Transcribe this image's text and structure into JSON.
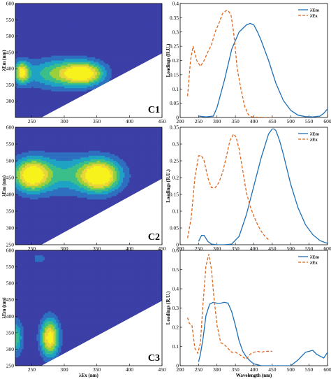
{
  "colors": {
    "em": "#1f6fb4",
    "ex": "#e0661b",
    "contour_levels": [
      "#3b3fa6",
      "#2e6fc0",
      "#1fa3c4",
      "#3bbf8a",
      "#9bcf3c",
      "#e8d53a",
      "#f7f21c"
    ],
    "mask": "#ffffff"
  },
  "chart_data": [
    {
      "type": "heatmap",
      "component": "C1",
      "label": "C1",
      "xlabel": "",
      "ylabel": "λEm (nm)",
      "xlim": [
        225,
        450
      ],
      "ylim": [
        250,
        600
      ],
      "xticks": [
        "250",
        "300",
        "350",
        "400",
        "450"
      ],
      "yticks": [
        "300",
        "350",
        "400",
        "450",
        "500",
        "550",
        "600"
      ],
      "peaks": [
        {
          "ex": 235,
          "em": 388,
          "sx": 8,
          "sy": 24,
          "amp": 0.85
        },
        {
          "ex": 330,
          "em": 385,
          "sx": 22,
          "sy": 25,
          "amp": 1.0
        },
        {
          "ex": 285,
          "em": 385,
          "sx": 32,
          "sy": 32,
          "amp": 0.55
        }
      ],
      "mask_line": {
        "ex": [
          265,
          450
        ],
        "em": [
          250,
          447
        ]
      }
    },
    {
      "type": "heatmap",
      "component": "C2",
      "label": "C2",
      "xlabel": "",
      "ylabel": "λEm (nm)",
      "xlim": [
        225,
        450
      ],
      "ylim": [
        250,
        600
      ],
      "xticks": [
        "250",
        "300",
        "350",
        "400",
        "450"
      ],
      "yticks": [
        "250",
        "300",
        "350",
        "400",
        "450",
        "500",
        "550",
        "600"
      ],
      "peaks": [
        {
          "ex": 250,
          "em": 457,
          "sx": 18,
          "sy": 32,
          "amp": 0.9
        },
        {
          "ex": 355,
          "em": 455,
          "sx": 20,
          "sy": 32,
          "amp": 1.0
        },
        {
          "ex": 300,
          "em": 460,
          "sx": 55,
          "sy": 42,
          "amp": 0.45
        }
      ],
      "mask_line": {
        "ex": [
          265,
          450
        ],
        "em": [
          250,
          447
        ]
      }
    },
    {
      "type": "heatmap",
      "component": "C3",
      "label": "C3",
      "xlabel": "λEx (nm)",
      "ylabel": "λEm (nm)",
      "xlim": [
        225,
        450
      ],
      "ylim": [
        250,
        600
      ],
      "xticks": [
        "250",
        "300",
        "350",
        "400",
        "450"
      ],
      "yticks": [
        "250",
        "300",
        "350",
        "400",
        "450",
        "500",
        "550",
        "600"
      ],
      "peaks": [
        {
          "ex": 278,
          "em": 335,
          "sx": 10,
          "sy": 40,
          "amp": 1.0
        },
        {
          "ex": 222,
          "em": 335,
          "sx": 10,
          "sy": 38,
          "amp": 0.6
        },
        {
          "ex": 262,
          "em": 575,
          "sx": 8,
          "sy": 12,
          "amp": 0.25
        }
      ],
      "mask_line": {
        "ex": [
          265,
          450
        ],
        "em": [
          250,
          447
        ]
      }
    },
    {
      "type": "line",
      "component": "C1",
      "xlabel": "",
      "ylabel": "Loadings (R.U.)",
      "xlim": [
        200,
        600
      ],
      "ylim": [
        0,
        0.4
      ],
      "xticks": [
        "200",
        "250",
        "300",
        "350",
        "400",
        "450",
        "500",
        "550",
        "600"
      ],
      "yticks": [
        "0",
        "0.05",
        "0.1",
        "0.15",
        "0.2",
        "0.25",
        "0.3",
        "0.35",
        "0.4"
      ],
      "legend": "top-right",
      "series": [
        {
          "name": "λEm",
          "style": "solid",
          "x": [
            250,
            270,
            290,
            300,
            320,
            340,
            360,
            380,
            390,
            400,
            410,
            420,
            440,
            460,
            480,
            500,
            520,
            540,
            560,
            580,
            590,
            600
          ],
          "y": [
            0.005,
            0.002,
            0.005,
            0.035,
            0.13,
            0.24,
            0.3,
            0.325,
            0.33,
            0.325,
            0.3,
            0.27,
            0.2,
            0.12,
            0.06,
            0.025,
            0.008,
            0.003,
            0.002,
            0.005,
            0.015,
            0.03
          ]
        },
        {
          "name": "λEx",
          "style": "dashed",
          "x": [
            220,
            228,
            235,
            245,
            255,
            265,
            275,
            285,
            295,
            305,
            315,
            325,
            330,
            338,
            345,
            355,
            365,
            375,
            385,
            395,
            405,
            415,
            425,
            435,
            445,
            455
          ],
          "y": [
            0.075,
            0.2,
            0.25,
            0.2,
            0.18,
            0.2,
            0.23,
            0.255,
            0.3,
            0.33,
            0.365,
            0.375,
            0.375,
            0.36,
            0.3,
            0.17,
            0.1,
            0.04,
            0.01,
            0.002,
            0.001,
            0.001,
            0.0,
            0.0,
            0.0,
            0.0
          ]
        }
      ]
    },
    {
      "type": "line",
      "component": "C2",
      "xlabel": "",
      "ylabel": "Loadings (R.U.)",
      "xlim": [
        200,
        600
      ],
      "ylim": [
        0,
        0.35
      ],
      "xticks": [
        "200",
        "250",
        "300",
        "350",
        "400",
        "450",
        "500",
        "550",
        "600"
      ],
      "yticks": [
        "0",
        "0.05",
        "0.1",
        "0.15",
        "0.2",
        "0.25",
        "0.3",
        "0.35"
      ],
      "legend": "top-right",
      "series": [
        {
          "name": "λEm",
          "style": "solid",
          "x": [
            250,
            258,
            265,
            275,
            285,
            300,
            320,
            340,
            360,
            380,
            400,
            420,
            440,
            450,
            455,
            460,
            470,
            480,
            500,
            520,
            540,
            560,
            580,
            600
          ],
          "y": [
            0.01,
            0.028,
            0.028,
            0.01,
            0.002,
            0.0,
            0.0,
            0.002,
            0.025,
            0.09,
            0.175,
            0.26,
            0.33,
            0.345,
            0.345,
            0.34,
            0.31,
            0.27,
            0.18,
            0.11,
            0.06,
            0.03,
            0.012,
            0.004
          ]
        },
        {
          "name": "λEx",
          "style": "dashed",
          "x": [
            220,
            230,
            240,
            250,
            258,
            265,
            275,
            285,
            295,
            305,
            315,
            325,
            335,
            345,
            352,
            360,
            370,
            380,
            390,
            400,
            410,
            420,
            430,
            440
          ],
          "y": [
            0.02,
            0.08,
            0.2,
            0.265,
            0.265,
            0.25,
            0.2,
            0.17,
            0.17,
            0.185,
            0.215,
            0.26,
            0.31,
            0.33,
            0.32,
            0.285,
            0.22,
            0.155,
            0.115,
            0.085,
            0.06,
            0.04,
            0.025,
            0.015
          ]
        }
      ]
    },
    {
      "type": "line",
      "component": "C3",
      "xlabel": "Wavelength (nm)",
      "ylabel": "Loadings (R.U.)",
      "xlim": [
        200,
        600
      ],
      "ylim": [
        0,
        0.6
      ],
      "xticks": [
        "200",
        "250",
        "300",
        "350",
        "400",
        "450",
        "500",
        "550",
        "600"
      ],
      "yticks": [
        "0",
        "0.1",
        "0.2",
        "0.3",
        "0.4",
        "0.5",
        "0.6"
      ],
      "legend": "top-right",
      "series": [
        {
          "name": "λEm",
          "style": "solid",
          "x": [
            250,
            255,
            262,
            270,
            280,
            290,
            300,
            310,
            320,
            330,
            340,
            350,
            360,
            370,
            380,
            390,
            400,
            420,
            440,
            460,
            480,
            500,
            520,
            540,
            560,
            570,
            580,
            590,
            600
          ],
          "y": [
            0.02,
            0.06,
            0.14,
            0.26,
            0.32,
            0.33,
            0.325,
            0.325,
            0.33,
            0.325,
            0.28,
            0.21,
            0.13,
            0.075,
            0.045,
            0.025,
            0.01,
            0.0,
            0.0,
            0.0,
            0.0,
            0.0,
            0.03,
            0.07,
            0.08,
            0.06,
            0.05,
            0.04,
            0.07
          ]
        },
        {
          "name": "λEx",
          "style": "dashed",
          "x": [
            220,
            225,
            232,
            240,
            248,
            255,
            262,
            270,
            278,
            285,
            292,
            300,
            310,
            320,
            330,
            340,
            350,
            360,
            370,
            380,
            390,
            400,
            410,
            420,
            430,
            440,
            450
          ],
          "y": [
            0.25,
            0.22,
            0.21,
            0.09,
            0.065,
            0.12,
            0.32,
            0.52,
            0.58,
            0.5,
            0.35,
            0.21,
            0.12,
            0.11,
            0.09,
            0.07,
            0.07,
            0.06,
            0.045,
            0.035,
            0.06,
            0.07,
            0.075,
            0.07,
            0.075,
            0.075,
            0.075
          ]
        }
      ]
    }
  ]
}
